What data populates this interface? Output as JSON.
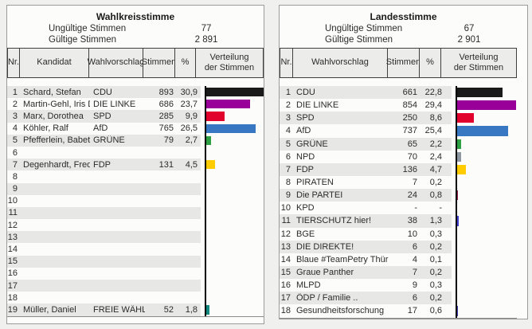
{
  "chart_data": [
    {
      "type": "bar",
      "orientation": "horizontal",
      "title": "Wahlkreisstimme",
      "invalid_votes_label": "Ungültige Stimmen",
      "invalid_votes": 77,
      "valid_votes_label": "Gültige Stimmen",
      "valid_votes": 2891,
      "categories": [
        "CDU",
        "DIE LINKE",
        "SPD",
        "AfD",
        "GRÜNE",
        "FDP",
        "FREIE WÄHLER"
      ],
      "candidates": [
        "Schard, Stefan",
        "Martin-Gehl, Iris Dr.",
        "Marx, Dorothea",
        "Köhler, Ralf",
        "Pfefferlein, Babett",
        "Degenhardt, Fred",
        "Müller, Daniel"
      ],
      "votes": [
        893,
        686,
        285,
        765,
        79,
        131,
        52
      ],
      "percent": [
        30.9,
        23.7,
        9.9,
        26.5,
        2.7,
        4.5,
        1.8
      ],
      "colors": [
        "#1a1a1a",
        "#990099",
        "#e2032c",
        "#3878c2",
        "#2da044",
        "#ffcc00",
        "#12897e"
      ],
      "xlim": [
        0,
        30.9
      ],
      "legend": false,
      "grid": false
    },
    {
      "type": "bar",
      "orientation": "horizontal",
      "title": "Landesstimme",
      "invalid_votes_label": "Ungültige Stimmen",
      "invalid_votes": 67,
      "valid_votes_label": "Gültige Stimmen",
      "valid_votes": 2901,
      "categories": [
        "CDU",
        "DIE LINKE",
        "SPD",
        "AfD",
        "GRÜNE",
        "NPD",
        "FDP",
        "PIRATEN",
        "Die PARTEI",
        "KPD",
        "TIERSCHUTZ hier!",
        "BGE",
        "DIE DIREKTE!",
        "Blaue #TeamPetry Thüringen",
        "Graue Panther",
        "MLPD",
        "ÖDP / Familie ..",
        "Gesundheitsforschung"
      ],
      "votes": [
        661,
        854,
        250,
        737,
        65,
        70,
        136,
        7,
        24,
        null,
        38,
        10,
        6,
        4,
        7,
        9,
        6,
        17
      ],
      "percent": [
        22.8,
        29.4,
        8.6,
        25.4,
        2.2,
        2.4,
        4.7,
        0.2,
        0.8,
        null,
        1.3,
        0.3,
        0.2,
        0.1,
        0.2,
        0.3,
        0.2,
        0.6
      ],
      "colors": [
        "#1a1a1a",
        "#990099",
        "#e2032c",
        "#3878c2",
        "#2da044",
        "#8d97a1",
        "#ffcc00",
        "#ff8800",
        "#9c1b4e",
        null,
        "#4141cd",
        "#121c50",
        "#666666",
        "#2090d0",
        "#909090",
        "#7a1010",
        "#ff7f00",
        "#3a3ab4"
      ],
      "xlim": [
        0,
        29.4
      ],
      "legend": false,
      "grid": false
    }
  ],
  "panels": [
    {
      "title": "Wahlkreisstimme",
      "summary": [
        {
          "label": "Ungültige Stimmen",
          "value": "77"
        },
        {
          "label": "Gültige Stimmen",
          "value": "2 891"
        }
      ],
      "columns": [
        "Nr.",
        "Kandidat",
        "Wahlvorschlag",
        "Stimmen",
        "%",
        "Verteilung\nder Stimmen"
      ],
      "max_pct": 30.9,
      "rows": [
        {
          "nr": "1",
          "kandidat": "Schard, Stefan",
          "wahlvorschlag": "CDU",
          "stimmen": "893",
          "pct": "30,9",
          "pct_value": 30.9,
          "bar_color": "#1a1a1a"
        },
        {
          "nr": "2",
          "kandidat": "Martin-Gehl, Iris Dr.",
          "wahlvorschlag": "DIE LINKE",
          "stimmen": "686",
          "pct": "23,7",
          "pct_value": 23.7,
          "bar_color": "#990099"
        },
        {
          "nr": "3",
          "kandidat": "Marx, Dorothea",
          "wahlvorschlag": "SPD",
          "stimmen": "285",
          "pct": "9,9",
          "pct_value": 9.9,
          "bar_color": "#e2032c"
        },
        {
          "nr": "4",
          "kandidat": "Köhler, Ralf",
          "wahlvorschlag": "AfD",
          "stimmen": "765",
          "pct": "26,5",
          "pct_value": 26.5,
          "bar_color": "#3878c2"
        },
        {
          "nr": "5",
          "kandidat": "Pfefferlein, Babett",
          "wahlvorschlag": "GRÜNE",
          "stimmen": "79",
          "pct": "2,7",
          "pct_value": 2.7,
          "bar_color": "#2da044"
        },
        {
          "nr": "6",
          "kandidat": "",
          "wahlvorschlag": "",
          "stimmen": "",
          "pct": "",
          "pct_value": 0,
          "bar_color": null
        },
        {
          "nr": "7",
          "kandidat": "Degenhardt, Fred",
          "wahlvorschlag": "FDP",
          "stimmen": "131",
          "pct": "4,5",
          "pct_value": 4.5,
          "bar_color": "#ffcc00"
        },
        {
          "nr": "8",
          "kandidat": "",
          "wahlvorschlag": "",
          "stimmen": "",
          "pct": "",
          "pct_value": 0,
          "bar_color": null
        },
        {
          "nr": "9",
          "kandidat": "",
          "wahlvorschlag": "",
          "stimmen": "",
          "pct": "",
          "pct_value": 0,
          "bar_color": null
        },
        {
          "nr": "10",
          "kandidat": "",
          "wahlvorschlag": "",
          "stimmen": "",
          "pct": "",
          "pct_value": 0,
          "bar_color": null
        },
        {
          "nr": "11",
          "kandidat": "",
          "wahlvorschlag": "",
          "stimmen": "",
          "pct": "",
          "pct_value": 0,
          "bar_color": null
        },
        {
          "nr": "12",
          "kandidat": "",
          "wahlvorschlag": "",
          "stimmen": "",
          "pct": "",
          "pct_value": 0,
          "bar_color": null
        },
        {
          "nr": "13",
          "kandidat": "",
          "wahlvorschlag": "",
          "stimmen": "",
          "pct": "",
          "pct_value": 0,
          "bar_color": null
        },
        {
          "nr": "14",
          "kandidat": "",
          "wahlvorschlag": "",
          "stimmen": "",
          "pct": "",
          "pct_value": 0,
          "bar_color": null
        },
        {
          "nr": "15",
          "kandidat": "",
          "wahlvorschlag": "",
          "stimmen": "",
          "pct": "",
          "pct_value": 0,
          "bar_color": null
        },
        {
          "nr": "16",
          "kandidat": "",
          "wahlvorschlag": "",
          "stimmen": "",
          "pct": "",
          "pct_value": 0,
          "bar_color": null
        },
        {
          "nr": "17",
          "kandidat": "",
          "wahlvorschlag": "",
          "stimmen": "",
          "pct": "",
          "pct_value": 0,
          "bar_color": null
        },
        {
          "nr": "18",
          "kandidat": "",
          "wahlvorschlag": "",
          "stimmen": "",
          "pct": "",
          "pct_value": 0,
          "bar_color": null
        },
        {
          "nr": "19",
          "kandidat": "Müller, Daniel",
          "wahlvorschlag": "FREIE WÄHLER",
          "stimmen": "52",
          "pct": "1,8",
          "pct_value": 1.8,
          "bar_color": "#12897e"
        }
      ]
    },
    {
      "title": "Landesstimme",
      "summary": [
        {
          "label": "Ungültige Stimmen",
          "value": "67"
        },
        {
          "label": "Gültige Stimmen",
          "value": "2 901"
        }
      ],
      "columns": [
        "Nr.",
        "Wahlvorschlag",
        "Stimmen",
        "%",
        "Verteilung\nder Stimmen"
      ],
      "max_pct": 29.4,
      "rows": [
        {
          "nr": "1",
          "wahlvorschlag": "CDU",
          "stimmen": "661",
          "pct": "22,8",
          "pct_value": 22.8,
          "bar_color": "#1a1a1a"
        },
        {
          "nr": "2",
          "wahlvorschlag": "DIE LINKE",
          "stimmen": "854",
          "pct": "29,4",
          "pct_value": 29.4,
          "bar_color": "#990099"
        },
        {
          "nr": "3",
          "wahlvorschlag": "SPD",
          "stimmen": "250",
          "pct": "8,6",
          "pct_value": 8.6,
          "bar_color": "#e2032c"
        },
        {
          "nr": "4",
          "wahlvorschlag": "AfD",
          "stimmen": "737",
          "pct": "25,4",
          "pct_value": 25.4,
          "bar_color": "#3878c2"
        },
        {
          "nr": "5",
          "wahlvorschlag": "GRÜNE",
          "stimmen": "65",
          "pct": "2,2",
          "pct_value": 2.2,
          "bar_color": "#2da044"
        },
        {
          "nr": "6",
          "wahlvorschlag": "NPD",
          "stimmen": "70",
          "pct": "2,4",
          "pct_value": 2.4,
          "bar_color": "#8d97a1"
        },
        {
          "nr": "7",
          "wahlvorschlag": "FDP",
          "stimmen": "136",
          "pct": "4,7",
          "pct_value": 4.7,
          "bar_color": "#ffcc00"
        },
        {
          "nr": "8",
          "wahlvorschlag": "PIRATEN",
          "stimmen": "7",
          "pct": "0,2",
          "pct_value": 0.2,
          "bar_color": "#ff8800"
        },
        {
          "nr": "9",
          "wahlvorschlag": "Die PARTEI",
          "stimmen": "24",
          "pct": "0,8",
          "pct_value": 0.8,
          "bar_color": "#9c1b4e"
        },
        {
          "nr": "10",
          "wahlvorschlag": "KPD",
          "stimmen": "-",
          "pct": "-",
          "pct_value": 0,
          "bar_color": null
        },
        {
          "nr": "11",
          "wahlvorschlag": "TIERSCHUTZ hier!",
          "stimmen": "38",
          "pct": "1,3",
          "pct_value": 1.3,
          "bar_color": "#4141cd"
        },
        {
          "nr": "12",
          "wahlvorschlag": "BGE",
          "stimmen": "10",
          "pct": "0,3",
          "pct_value": 0.3,
          "bar_color": "#121c50"
        },
        {
          "nr": "13",
          "wahlvorschlag": "DIE DIREKTE!",
          "stimmen": "6",
          "pct": "0,2",
          "pct_value": 0.2,
          "bar_color": "#666666"
        },
        {
          "nr": "14",
          "wahlvorschlag": "Blaue #TeamPetry Thüringen",
          "stimmen": "4",
          "pct": "0,1",
          "pct_value": 0.1,
          "bar_color": "#2090d0"
        },
        {
          "nr": "15",
          "wahlvorschlag": "Graue Panther",
          "stimmen": "7",
          "pct": "0,2",
          "pct_value": 0.2,
          "bar_color": "#909090"
        },
        {
          "nr": "16",
          "wahlvorschlag": "MLPD",
          "stimmen": "9",
          "pct": "0,3",
          "pct_value": 0.3,
          "bar_color": "#7a1010"
        },
        {
          "nr": "17",
          "wahlvorschlag": "ÖDP / Familie ..",
          "stimmen": "6",
          "pct": "0,2",
          "pct_value": 0.2,
          "bar_color": "#ff7f00"
        },
        {
          "nr": "18",
          "wahlvorschlag": "Gesundheitsforschung",
          "stimmen": "17",
          "pct": "0,6",
          "pct_value": 0.6,
          "bar_color": "#3a3ab4"
        }
      ]
    }
  ]
}
